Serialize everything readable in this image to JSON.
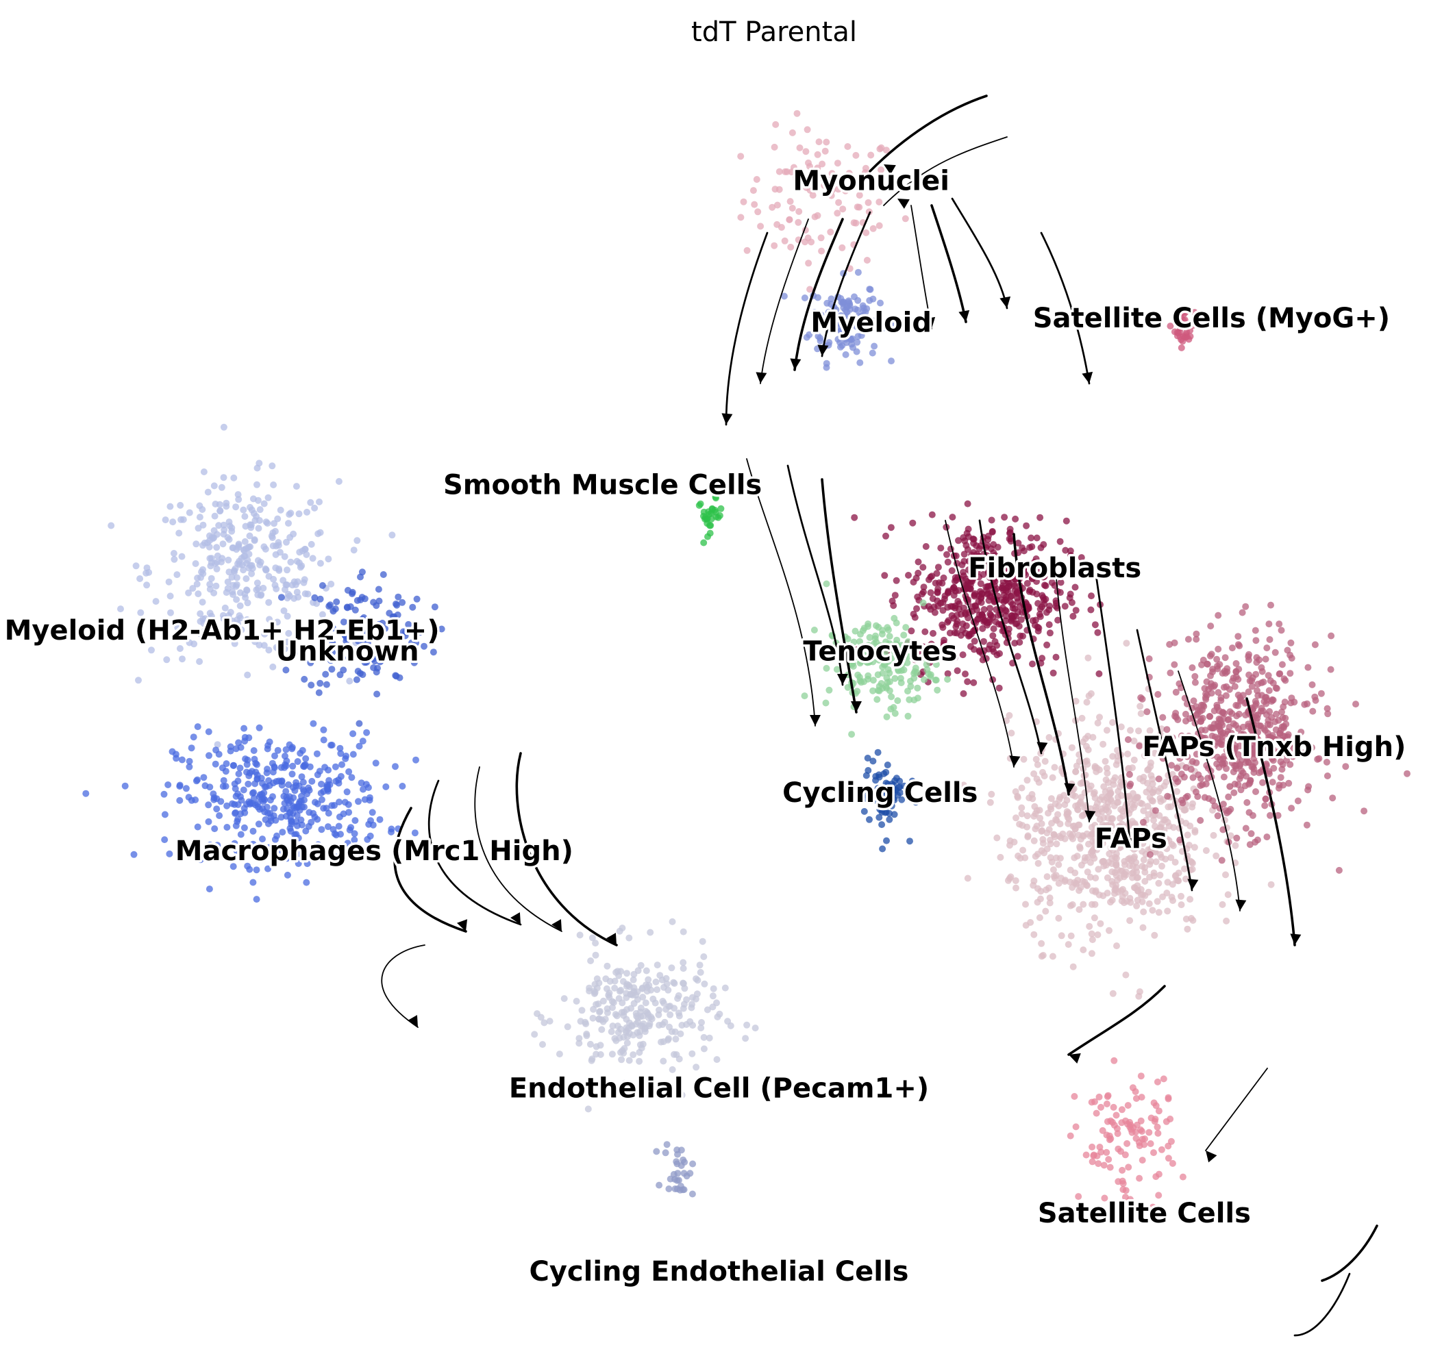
{
  "chart_data": {
    "type": "scatter",
    "title": "tdT Parental",
    "xlabel": "",
    "ylabel": "",
    "grid": false,
    "legend": "on data",
    "overlay": "velocity streamlines",
    "clusters": [
      {
        "name": "Myonuclei",
        "color": "#e4a9b8",
        "center": [
          7.9,
          18.2
        ],
        "spread": [
          1.6,
          1.5
        ],
        "n": 110
      },
      {
        "name": "Myeloid",
        "color": "#7f8fd8",
        "center": [
          8.4,
          15.3
        ],
        "spread": [
          0.7,
          0.9
        ],
        "n": 120
      },
      {
        "name": "Satellite Cells (MyoG+)",
        "color": "#cf5a7e",
        "center": [
          16.0,
          15.1
        ],
        "spread": [
          0.2,
          0.4
        ],
        "n": 30
      },
      {
        "name": "Smooth Muscle Cells",
        "color": "#2ec24a",
        "center": [
          5.4,
          10.6
        ],
        "spread": [
          0.25,
          0.35
        ],
        "n": 28
      },
      {
        "name": "Myeloid (H2-Ab1+ H2-Eb1+)",
        "color": "#b3bde6",
        "center": [
          -5.0,
          9.3
        ],
        "spread": [
          1.9,
          1.9
        ],
        "n": 330
      },
      {
        "name": "Unknown",
        "color": "#3f5fd0",
        "center": [
          -2.3,
          7.8
        ],
        "spread": [
          1.3,
          1.4
        ],
        "n": 130
      },
      {
        "name": "Macrophages (Mrc1 High)",
        "color": "#4a6be0",
        "center": [
          -4.2,
          3.8
        ],
        "spread": [
          2.1,
          1.4
        ],
        "n": 380
      },
      {
        "name": "Endothelial Cell (Pecam1+)",
        "color": "#c4c7db",
        "center": [
          3.8,
          -1.4
        ],
        "spread": [
          1.6,
          1.4
        ],
        "n": 280
      },
      {
        "name": "Cycling Endothelial Cells",
        "color": "#8f9ac7",
        "center": [
          4.7,
          -5.1
        ],
        "spread": [
          0.3,
          0.6
        ],
        "n": 30
      },
      {
        "name": "Fibroblasts",
        "color": "#8b1446",
        "center": [
          11.6,
          8.7
        ],
        "spread": [
          1.6,
          1.6
        ],
        "n": 520
      },
      {
        "name": "Tenocytes",
        "color": "#8fd29a",
        "center": [
          9.2,
          7.0
        ],
        "spread": [
          1.1,
          1.0
        ],
        "n": 160
      },
      {
        "name": "Cycling Cells",
        "color": "#1f4fa8",
        "center": [
          9.3,
          3.9
        ],
        "spread": [
          0.45,
          0.8
        ],
        "n": 70
      },
      {
        "name": "FAPs",
        "color": "#dcbcc4",
        "center": [
          14.3,
          3.0
        ],
        "spread": [
          2.0,
          2.3
        ],
        "n": 700
      },
      {
        "name": "FAPs (Tnxb High)",
        "color": "#b8627f",
        "center": [
          17.2,
          5.4
        ],
        "spread": [
          1.6,
          2.0
        ],
        "n": 560
      },
      {
        "name": "Satellite Cells",
        "color": "#e7859b",
        "center": [
          14.7,
          -4.4
        ],
        "spread": [
          1.0,
          1.4
        ],
        "n": 110
      }
    ],
    "label_positions": [
      {
        "text": "Myonuclei",
        "x": 9.0,
        "y": 18.6
      },
      {
        "text": "Myeloid",
        "x": 9.0,
        "y": 15.2
      },
      {
        "text": "Satellite Cells (MyoG+)",
        "x": 16.6,
        "y": 15.3
      },
      {
        "text": "Smooth Muscle Cells",
        "x": 3.0,
        "y": 11.3
      },
      {
        "text": "Myeloid (H2-Ab1+ H2-Eb1+)",
        "x": -5.5,
        "y": 7.8
      },
      {
        "text": "Unknown",
        "x": -2.7,
        "y": 7.3
      },
      {
        "text": "Macrophages (Mrc1 High)",
        "x": -2.1,
        "y": 2.5
      },
      {
        "text": "Endothelial Cell (Pecam1+)",
        "x": 5.6,
        "y": -3.2
      },
      {
        "text": "Cycling Endothelial Cells",
        "x": 5.6,
        "y": -7.6
      },
      {
        "text": "Fibroblasts",
        "x": 13.1,
        "y": 9.3
      },
      {
        "text": "Tenocytes",
        "x": 9.2,
        "y": 7.3
      },
      {
        "text": "Cycling Cells",
        "x": 9.2,
        "y": 3.9
      },
      {
        "text": "FAPs",
        "x": 14.8,
        "y": 2.8
      },
      {
        "text": "FAPs (Tnxb High)",
        "x": 18.0,
        "y": 5.0
      },
      {
        "text": "Satellite Cells",
        "x": 15.1,
        "y": -6.2
      }
    ],
    "xlim": [
      -10,
      21
    ],
    "ylim": [
      -9,
      22
    ]
  }
}
